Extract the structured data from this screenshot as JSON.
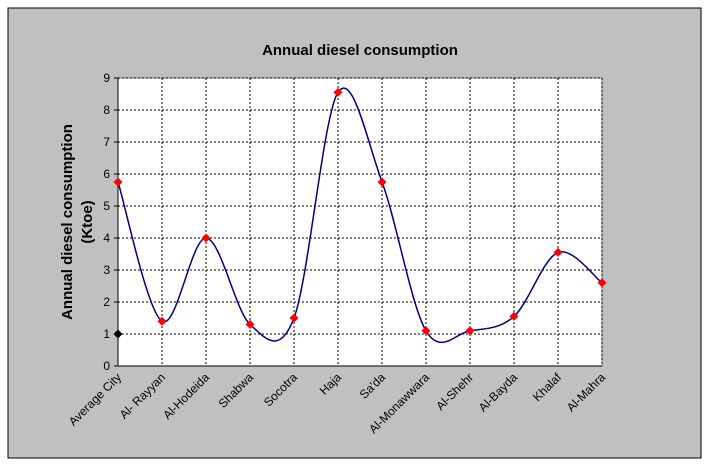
{
  "chart_data": {
    "type": "line",
    "title": "Annual diesel consumption",
    "ylabel": [
      "Annual diesel consumption",
      "(Ktoe)"
    ],
    "categories": [
      "Average City",
      "Al- Rayyan",
      "Al-Hodeida",
      "Shabwa",
      "Socotra",
      "Haja",
      "Sa'da",
      "Al-Monawwara",
      "Al-Shehr",
      "Al-Bayda",
      "Khalaf",
      "Al-Mahra"
    ],
    "series": [
      {
        "color": "#000080",
        "marker_color": "#ff0000",
        "smooth": true,
        "values": [
          5.75,
          1.4,
          4.0,
          1.3,
          1.5,
          8.55,
          5.75,
          1.1,
          1.1,
          1.55,
          3.55,
          2.6
        ]
      },
      {
        "color": "#000000",
        "marker_color": "#000000",
        "values": [
          1,
          null,
          null,
          null,
          null,
          null,
          null,
          null,
          null,
          null,
          null,
          null
        ]
      }
    ],
    "ylim": [
      0,
      9
    ],
    "yticks": [
      0,
      1,
      2,
      3,
      4,
      5,
      6,
      7,
      8,
      9
    ],
    "grid": true
  }
}
